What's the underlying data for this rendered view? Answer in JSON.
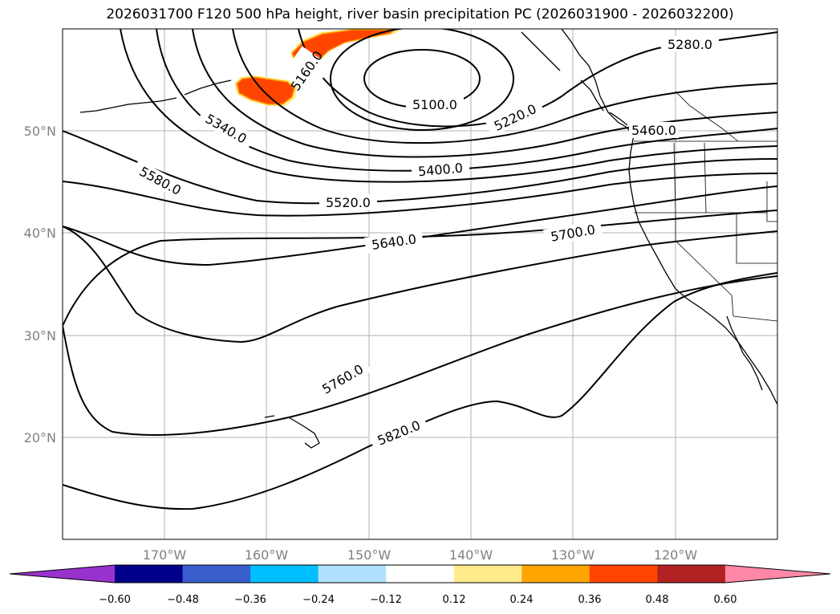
{
  "title": "2026031700 F120 500 hPa height, river basin precipitation PC (2026031900 - 2026032200)",
  "map": {
    "lat_labels": [
      "50°N",
      "40°N",
      "30°N",
      "20°N"
    ],
    "lon_labels": [
      "170°W",
      "160°W",
      "150°W",
      "140°W",
      "130°W",
      "120°W"
    ],
    "gridlines": true,
    "contour_color": "#000000",
    "contour_labels": [
      "5100.0",
      "5160.0",
      "5220.0",
      "5280.0",
      "5340.0",
      "5400.0",
      "5460.0",
      "5520.0",
      "5580.0",
      "5640.0",
      "5700.0",
      "5760.0",
      "5820.0"
    ],
    "precip_shading_colors": [
      "#ff4500",
      "#ffa500",
      "#ffeb8c"
    ]
  },
  "colorbar": {
    "ticks": [
      "−0.60",
      "−0.48",
      "−0.36",
      "−0.24",
      "−0.12",
      "0.12",
      "0.24",
      "0.36",
      "0.48",
      "0.60"
    ],
    "colors": [
      "#9932cc",
      "#00008b",
      "#3a5fcd",
      "#00bfff",
      "#b0e2ff",
      "#ffffff",
      "#ffeb8c",
      "#ffa500",
      "#ff4500",
      "#b22222",
      "#ff88a8"
    ],
    "extend": "both"
  }
}
